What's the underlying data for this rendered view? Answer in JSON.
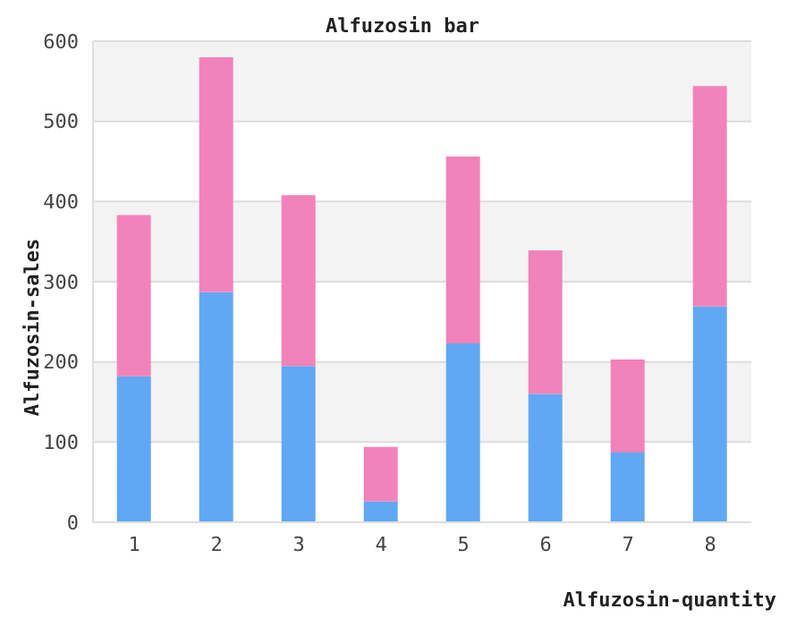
{
  "chart_data": {
    "type": "bar",
    "title": "Alfuzosin bar",
    "xlabel": "Alfuzosin-quantity",
    "ylabel": "Alfuzosin-sales",
    "categories": [
      "1",
      "2",
      "3",
      "4",
      "5",
      "6",
      "7",
      "8"
    ],
    "stacked": true,
    "series": [
      {
        "color": "#60a8f4",
        "values": [
          182,
          287,
          195,
          26,
          223,
          160,
          87,
          269
        ]
      },
      {
        "color": "#f282ba",
        "values": [
          201,
          293,
          213,
          68,
          233,
          179,
          116,
          275
        ]
      }
    ],
    "ylim": [
      0,
      600
    ],
    "yticks": [
      0,
      100,
      200,
      300,
      400,
      500,
      600
    ],
    "grid": "y"
  }
}
